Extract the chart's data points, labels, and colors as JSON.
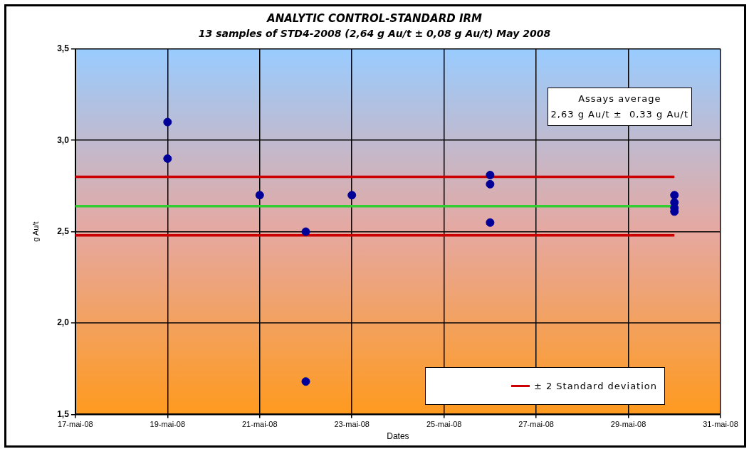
{
  "chart_data": {
    "type": "scatter",
    "title": "ANALYTIC CONTROL-STANDARD IRM",
    "subtitle": "13 samples of STD4-2008 (2,64 g Au/t ± 0,08 g Au/t) May 2008",
    "xlabel": "Dates",
    "ylabel": "g Au/t",
    "xlim": [
      "2008-05-17",
      "2008-05-31"
    ],
    "xticks": [
      {
        "value": "2008-05-17",
        "label": "17-mai-08"
      },
      {
        "value": "2008-05-19",
        "label": "19-mai-08"
      },
      {
        "value": "2008-05-21",
        "label": "21-mai-08"
      },
      {
        "value": "2008-05-23",
        "label": "23-mai-08"
      },
      {
        "value": "2008-05-25",
        "label": "25-mai-08"
      },
      {
        "value": "2008-05-27",
        "label": "27-mai-08"
      },
      {
        "value": "2008-05-29",
        "label": "29-mai-08"
      },
      {
        "value": "2008-05-31",
        "label": "31-mai-08"
      }
    ],
    "ylim": [
      1.5,
      3.5
    ],
    "yticks": [
      {
        "value": 1.5,
        "label": "1,5"
      },
      {
        "value": 2.0,
        "label": "2,0"
      },
      {
        "value": 2.5,
        "label": "2,5"
      },
      {
        "value": 3.0,
        "label": "3,0"
      },
      {
        "value": 3.5,
        "label": "3,5"
      }
    ],
    "grid": true,
    "marker": "circle",
    "legend": "bottom right",
    "annotations": [
      "Assays average\n2,63 g Au/t ±  0,33 g Au/t"
    ],
    "series": [
      {
        "color": "#000099",
        "x": [
          "2008-05-19",
          "2008-05-19",
          "2008-05-21",
          "2008-05-22",
          "2008-05-22",
          "2008-05-23",
          "2008-05-26",
          "2008-05-26",
          "2008-05-26",
          "2008-05-30",
          "2008-05-30",
          "2008-05-30",
          "2008-05-30"
        ],
        "values": [
          3.1,
          2.9,
          2.7,
          2.5,
          1.68,
          2.7,
          2.81,
          2.76,
          2.55,
          2.7,
          2.66,
          2.63,
          2.61
        ]
      },
      {
        "type": "line",
        "name": "± 2 Standard deviation",
        "color": "#cc0000",
        "marker": "none",
        "x": [
          "2008-05-17",
          "2008-05-30"
        ],
        "values": [
          2.8,
          2.8
        ]
      },
      {
        "type": "line",
        "color": "#cc0000",
        "marker": "none",
        "x": [
          "2008-05-17",
          "2008-05-30"
        ],
        "values": [
          2.48,
          2.48
        ]
      },
      {
        "type": "line",
        "color": "#33cc33",
        "marker": "none",
        "x": [
          "2008-05-17",
          "2008-05-30"
        ],
        "values": [
          2.64,
          2.64
        ]
      }
    ]
  }
}
